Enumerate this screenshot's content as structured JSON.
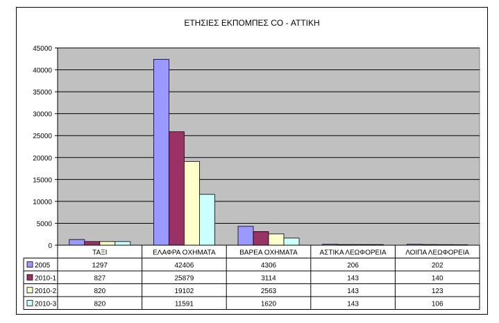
{
  "chart_data": {
    "type": "bar",
    "title": "ΕΤΗΣΙΕΣ ΕΚΠΟΜΠΕΣ CO - ΑΤΤΙΚΗ",
    "xlabel": "",
    "ylabel": "",
    "ylim": [
      0,
      45000
    ],
    "yticks": [
      "0",
      "5000",
      "10000",
      "15000",
      "20000",
      "25000",
      "30000",
      "35000",
      "40000",
      "45000"
    ],
    "grid": true,
    "legend": "data-table",
    "plot_background": "#c0c0c0",
    "categories": [
      "ΤΑΞΙ",
      "ΕΛΑΦΡΑ ΟΧΗΜΑΤΑ",
      "ΒΑΡΕΑ ΟΧΗΜΑΤΑ",
      "ΑΣΤΙΚΑ ΛΕΩΦΟΡΕΙΑ",
      "ΛΟΙΠΑ ΛΕΩΦΟΡΕΙΑ"
    ],
    "series": [
      {
        "name": "2005",
        "color": "#9999ff",
        "values": [
          1297,
          42406,
          4306,
          206,
          202
        ]
      },
      {
        "name": "2010-1",
        "color": "#993366",
        "values": [
          827,
          25879,
          3114,
          143,
          140
        ]
      },
      {
        "name": "2010-2",
        "color": "#ffffcc",
        "values": [
          820,
          19102,
          2563,
          143,
          123
        ]
      },
      {
        "name": "2010-3",
        "color": "#ccffff",
        "values": [
          820,
          11591,
          1620,
          143,
          106
        ]
      }
    ]
  }
}
